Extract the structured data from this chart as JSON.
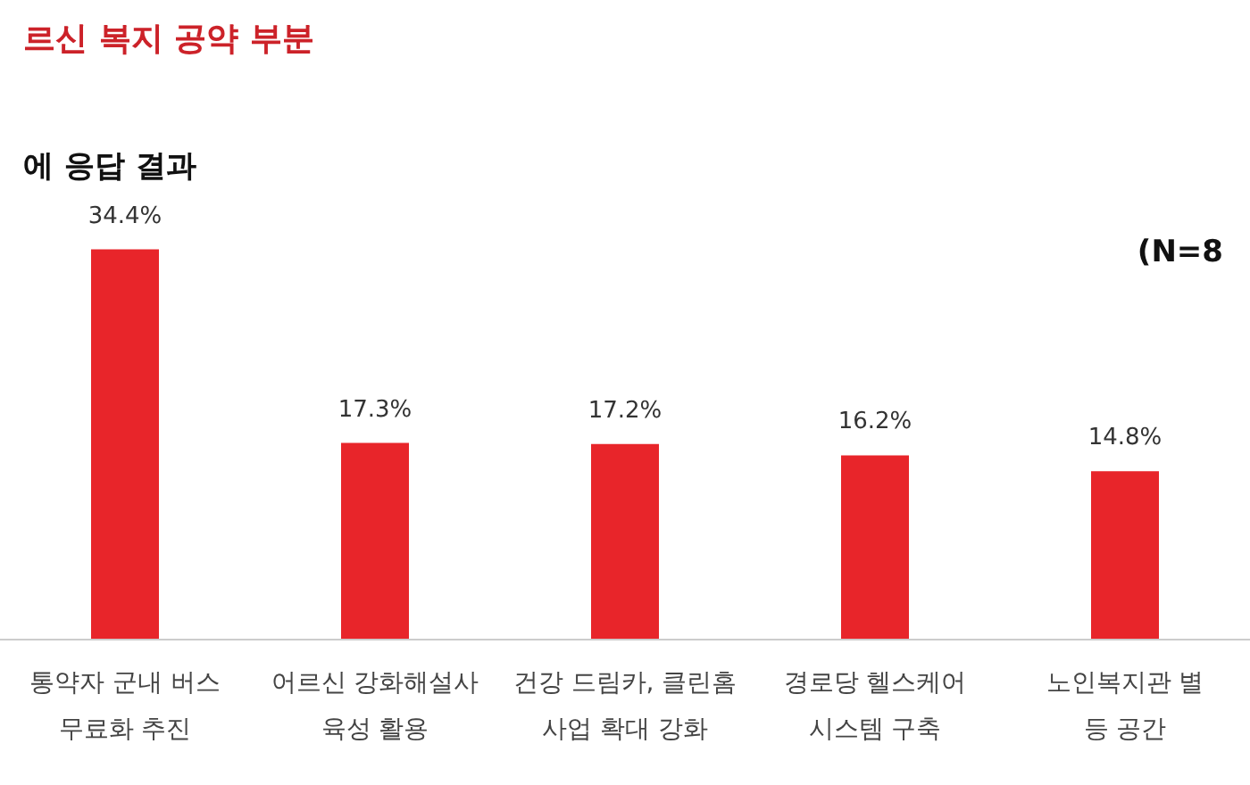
{
  "chart_data": {
    "type": "bar",
    "title": "르신 복지 공약 부분",
    "subtitle": "에 응답 결과",
    "annotations": [
      "(N=8"
    ],
    "categories": [
      "통약자 군내 버스\n무료화 추진",
      "어르신 강화해설사\n육성 활용",
      "건강 드림카, 클린홈\n사업 확대 강화",
      "경로당 헬스케어\n시스템 구축",
      "노인복지관 별\n등 공간"
    ],
    "values": [
      34.4,
      17.3,
      17.2,
      16.2,
      14.8
    ],
    "value_labels": [
      "34.4%",
      "17.3%",
      "17.2%",
      "16.2%",
      "14.8%"
    ],
    "color": "#e8252a"
  }
}
